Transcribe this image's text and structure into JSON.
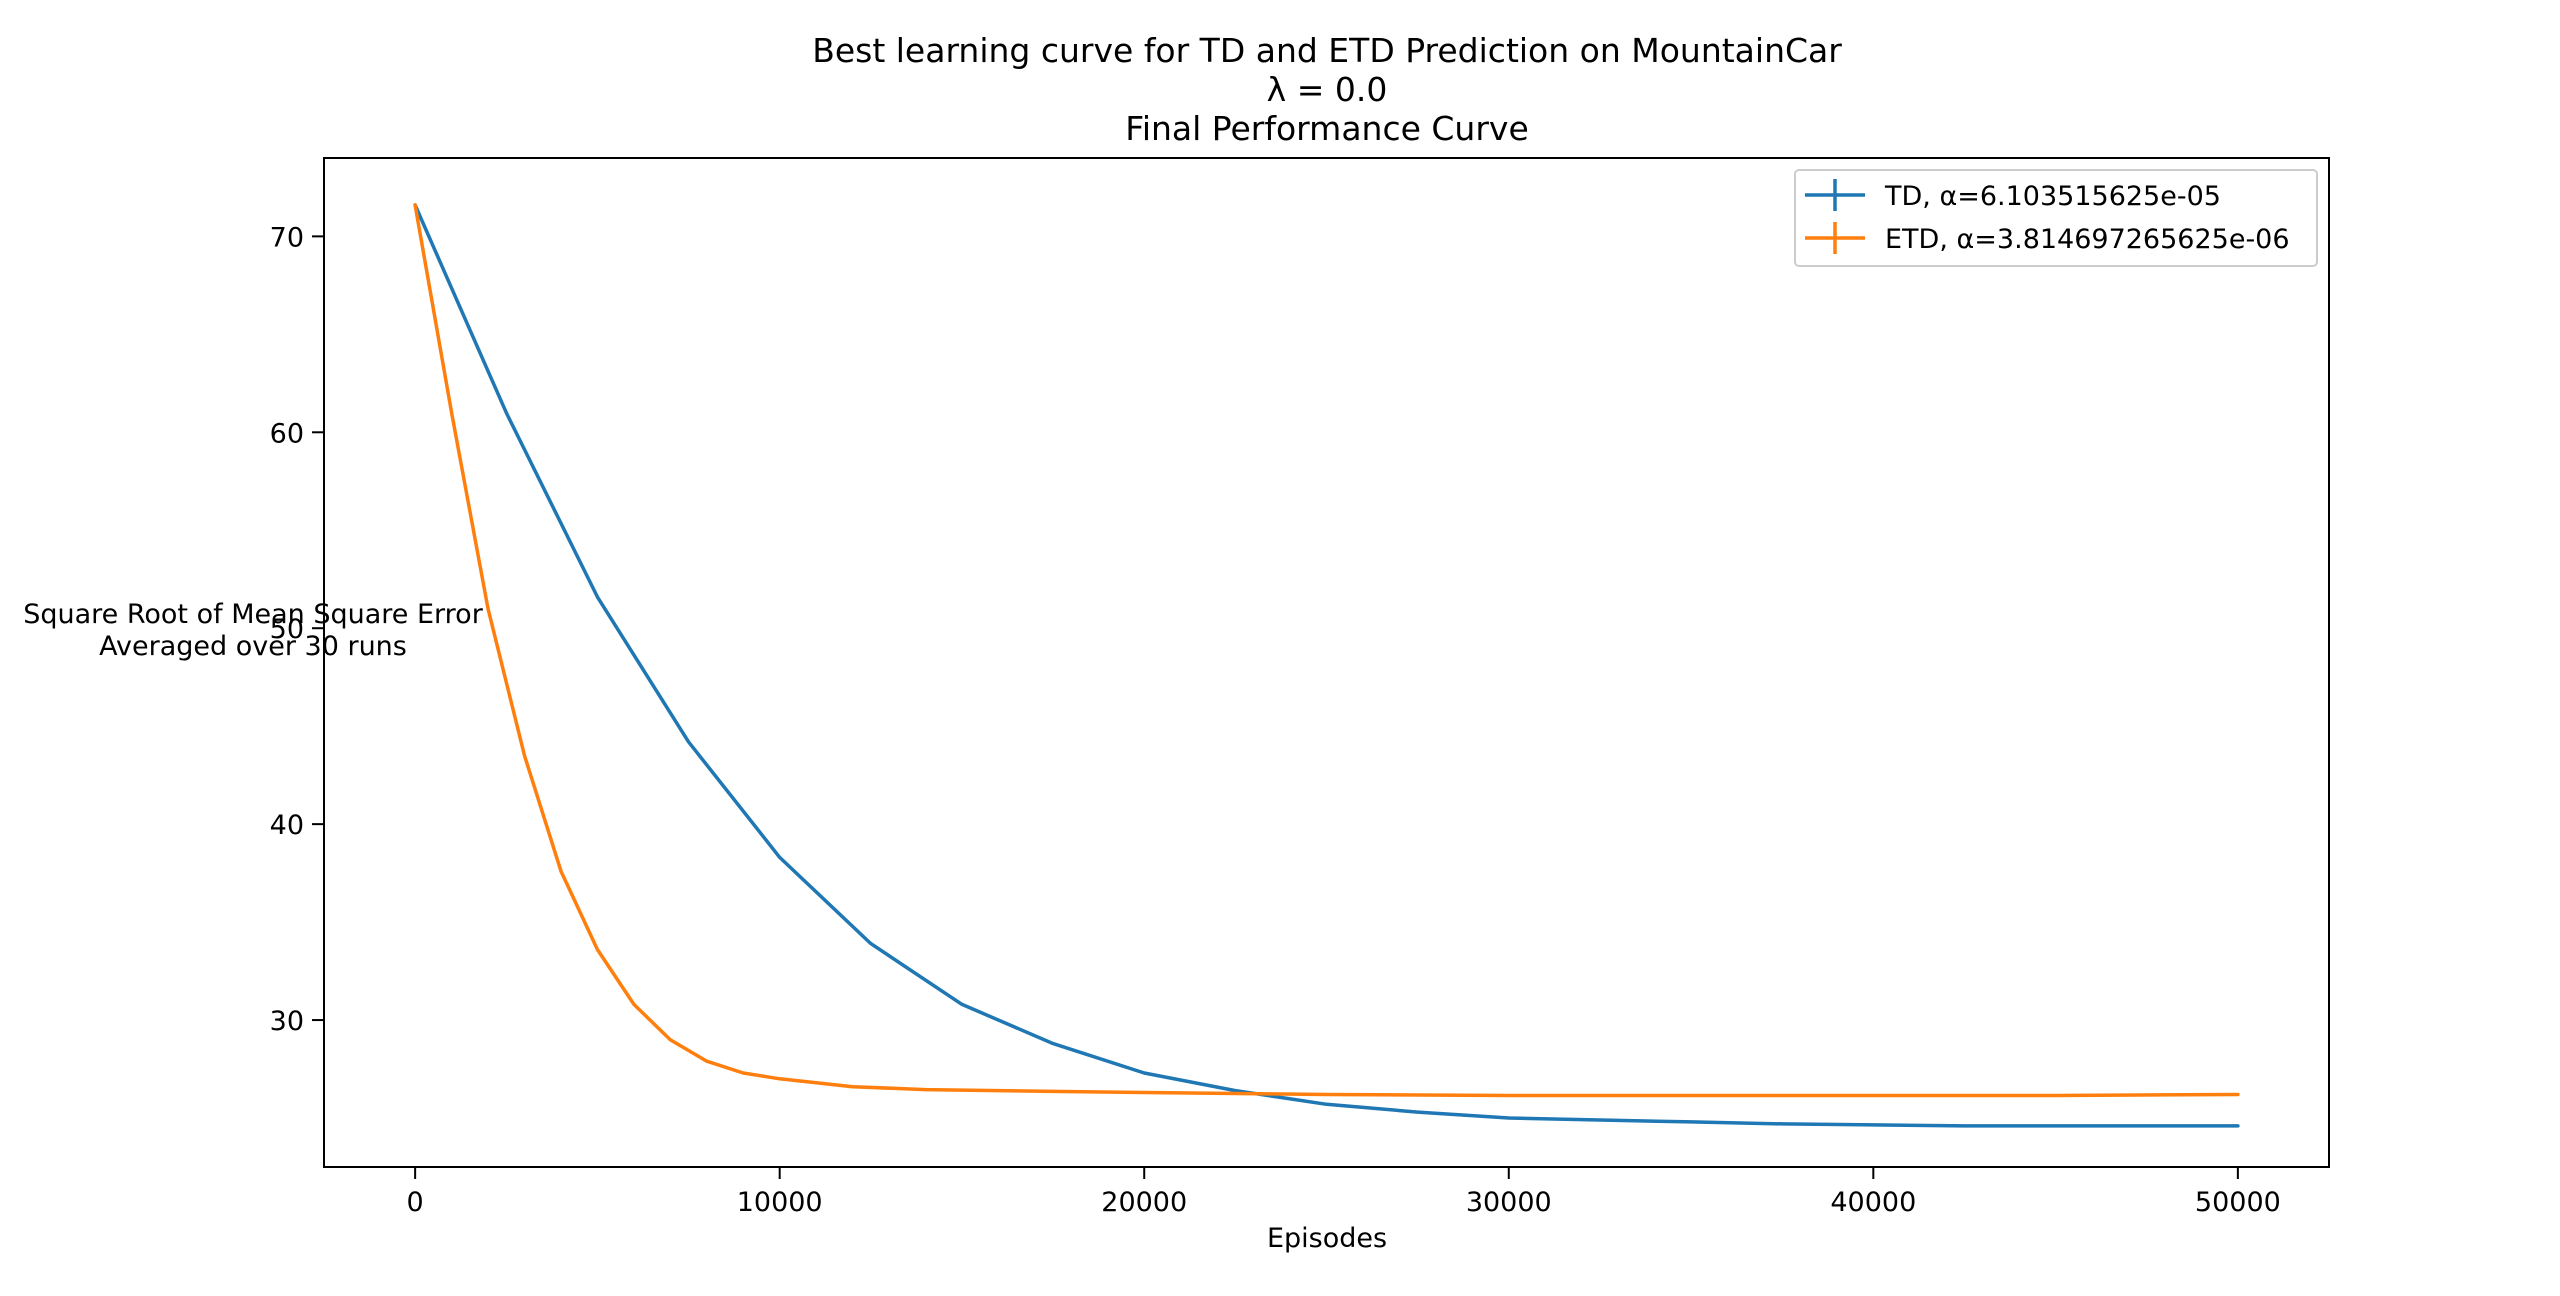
{
  "chart_data": {
    "type": "line",
    "title_lines": [
      "Best learning curve for TD and ETD Prediction on MountainCar",
      "λ = 0.0",
      "Final Performance Curve"
    ],
    "xlabel": "Episodes",
    "ylabel_lines": [
      "Square Root of Mean Square Error",
      "Averaged over 30 runs"
    ],
    "xlim": [
      -2500,
      52500
    ],
    "ylim": [
      22.5,
      74.0
    ],
    "xticks": [
      0,
      10000,
      20000,
      30000,
      40000,
      50000
    ],
    "xtick_labels": [
      "0",
      "10000",
      "20000",
      "30000",
      "40000",
      "50000"
    ],
    "yticks": [
      30,
      40,
      50,
      60,
      70
    ],
    "ytick_labels": [
      "30",
      "40",
      "50",
      "60",
      "70"
    ],
    "grid": false,
    "legend_placement": "upper right",
    "series": [
      {
        "name": "TD, α=6.103515625e-05",
        "color": "#1f77b4",
        "x": [
          0,
          2500,
          5000,
          7500,
          10000,
          12500,
          15000,
          17500,
          20000,
          22500,
          25000,
          27500,
          30000,
          32500,
          35000,
          37500,
          40000,
          42500,
          45000,
          47500,
          50000
        ],
        "y": [
          71.6,
          61.0,
          51.6,
          44.2,
          38.3,
          33.9,
          30.8,
          28.8,
          27.3,
          26.4,
          25.7,
          25.3,
          25.0,
          24.9,
          24.8,
          24.7,
          24.65,
          24.6,
          24.6,
          24.6,
          24.6
        ]
      },
      {
        "name": "ETD, α=3.814697265625e-06",
        "color": "#ff7f0e",
        "x": [
          0,
          1000,
          2000,
          3000,
          4000,
          5000,
          6000,
          7000,
          8000,
          9000,
          10000,
          12000,
          14000,
          16000,
          18000,
          20000,
          25000,
          30000,
          35000,
          40000,
          45000,
          50000
        ],
        "y": [
          71.6,
          61.0,
          51.0,
          43.5,
          37.6,
          33.6,
          30.8,
          29.0,
          27.9,
          27.3,
          27.0,
          26.6,
          26.45,
          26.4,
          26.35,
          26.3,
          26.2,
          26.15,
          26.15,
          26.15,
          26.15,
          26.2
        ]
      }
    ]
  }
}
